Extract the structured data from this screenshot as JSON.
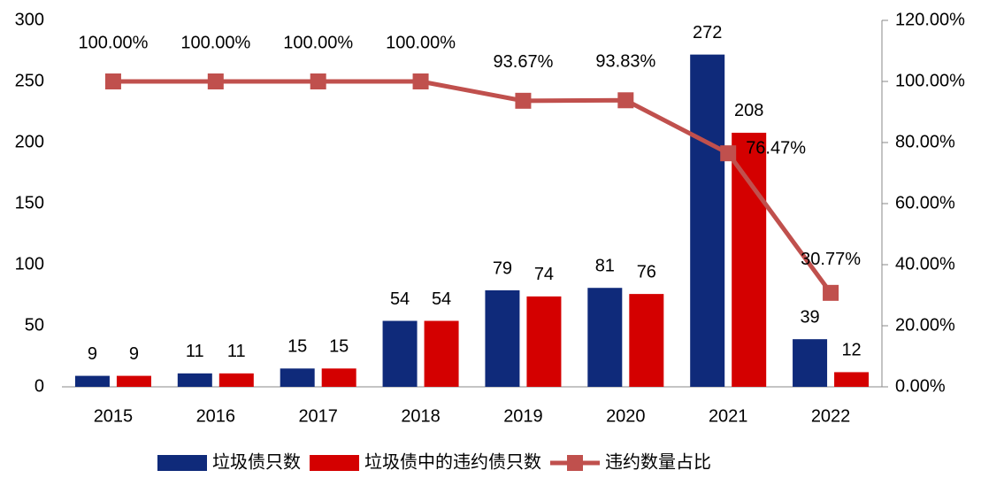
{
  "chart_data": {
    "type": "bar_line",
    "categories": [
      "2015",
      "2016",
      "2017",
      "2018",
      "2019",
      "2020",
      "2021",
      "2022"
    ],
    "series": [
      {
        "name": "垃圾债只数",
        "color": "#0f2a7a",
        "type": "bar",
        "values": [
          9,
          11,
          15,
          54,
          79,
          81,
          272,
          39
        ]
      },
      {
        "name": "垃圾债中的违约债只数",
        "color": "#d40000",
        "type": "bar",
        "values": [
          9,
          11,
          15,
          54,
          74,
          76,
          208,
          12
        ]
      },
      {
        "name": "违约数量占比",
        "color": "#c0504d",
        "type": "line",
        "axis": "y2",
        "values": [
          100,
          100,
          100,
          100,
          93.67,
          93.83,
          76.47,
          30.77
        ],
        "value_labels": [
          "100.00%",
          "100.00%",
          "100.00%",
          "100.00%",
          "93.67%",
          "93.83%",
          "76.47%",
          "30.77%"
        ]
      }
    ],
    "ylim": [
      0,
      300
    ],
    "yticks": [
      0,
      50,
      100,
      150,
      200,
      250,
      300
    ],
    "y2lim": [
      0,
      120
    ],
    "y2ticks": [
      {
        "value": 0,
        "label": "0.00%"
      },
      {
        "value": 20,
        "label": "20.00%"
      },
      {
        "value": 40,
        "label": "40.00%"
      },
      {
        "value": 60,
        "label": "60.00%"
      },
      {
        "value": 80,
        "label": "80.00%"
      },
      {
        "value": 100,
        "label": "100.00%"
      },
      {
        "value": 120,
        "label": "120.00%"
      }
    ],
    "grid": false,
    "legend": "bottom"
  }
}
